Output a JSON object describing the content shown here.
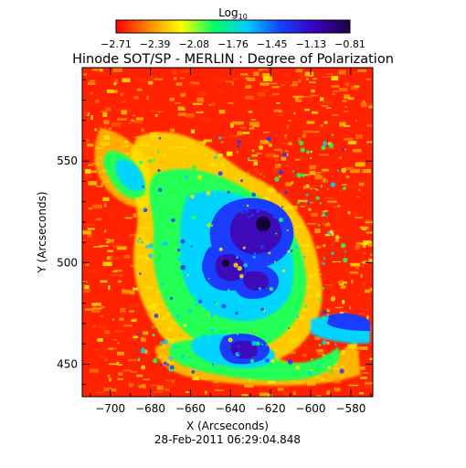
{
  "colorbar": {
    "title_base": "Log",
    "title_sub": "10",
    "ticks": [
      "-2.71",
      "-2.39",
      "-2.08",
      "-1.76",
      "-1.45",
      "-1.13",
      "-0.81"
    ],
    "colors": [
      "#ff0000",
      "#ff8800",
      "#ffff00",
      "#00ff66",
      "#00ccff",
      "#1144ff",
      "#3a00c0",
      "#1a0040"
    ]
  },
  "plot": {
    "title": "Hinode SOT/SP - MERLIN : Degree of Polarization",
    "xlabel": "X (Arcseconds)",
    "ylabel": "Y (Arcseconds)",
    "x_range": [
      -714,
      -569
    ],
    "y_range": [
      434,
      596
    ],
    "xticks": [
      -700,
      -680,
      -660,
      -640,
      -620,
      -600,
      -580
    ],
    "yticks": [
      450,
      500,
      550
    ],
    "xtick_labels": [
      "-700",
      "-680",
      "-660",
      "-640",
      "-620",
      "-600",
      "-580"
    ],
    "ytick_labels": [
      "450",
      "500",
      "550"
    ]
  },
  "timestamp": "28-Feb-2011 06:29:04.848"
}
